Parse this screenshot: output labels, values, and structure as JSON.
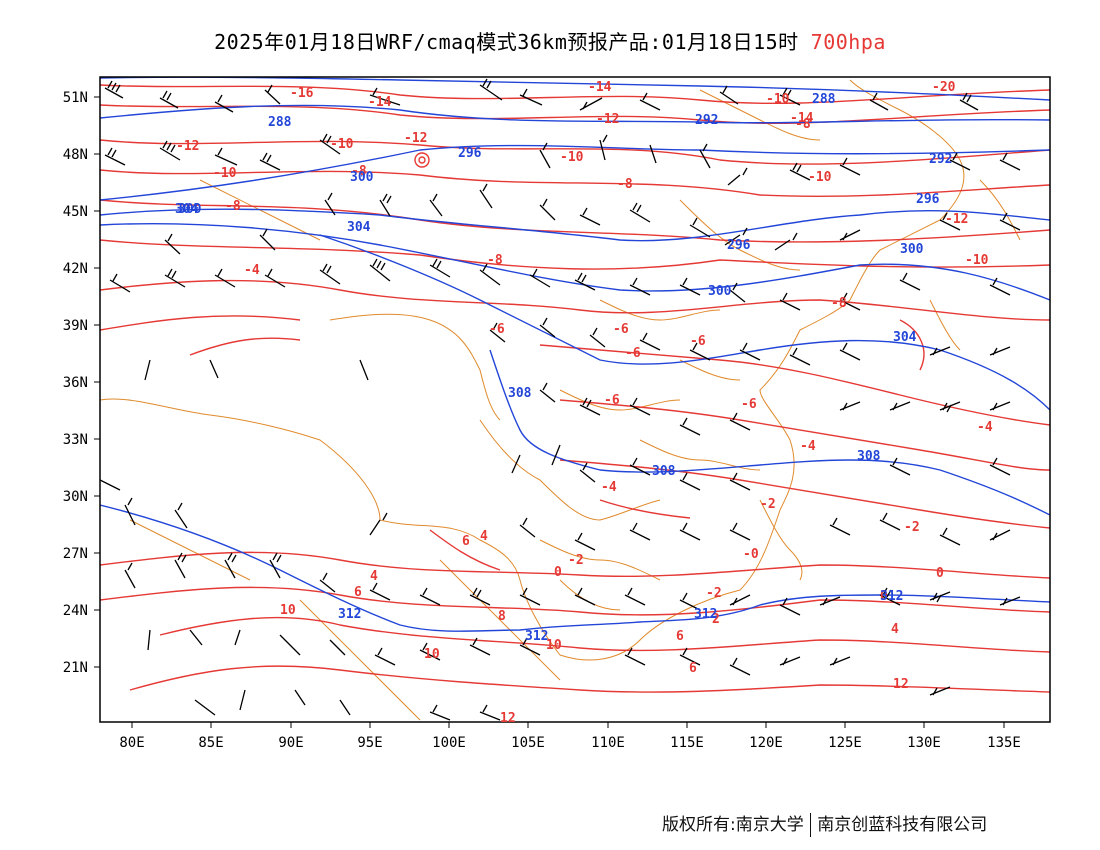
{
  "title": {
    "text": "2025年01月18日WRF/cmaq模式36km预报产品:01月18日15时",
    "level": "700hpa"
  },
  "axes": {
    "lat_labels": [
      "51N",
      "48N",
      "45N",
      "42N",
      "39N",
      "36N",
      "33N",
      "30N",
      "27N",
      "24N",
      "21N"
    ],
    "lon_labels": [
      "80E",
      "85E",
      "90E",
      "95E",
      "100E",
      "105E",
      "110E",
      "115E",
      "120E",
      "125E",
      "130E",
      "135E"
    ]
  },
  "colors": {
    "temperature_contour": "#e53935",
    "height_contour": "#2346d8",
    "boundary": "#e08a2c",
    "wind_barb": "#000000",
    "title_level": "#e53935"
  },
  "contour_labels": {
    "temperature": [
      "-16",
      "-14",
      "-14",
      "-20",
      "-10",
      "-14",
      "-12",
      "-12",
      "-10",
      "-12",
      "-10",
      "-8",
      "-10",
      "-8",
      "-8",
      "-10",
      "-8",
      "-12",
      "-4",
      "-10",
      "-8",
      "-8",
      "-6",
      "-6",
      "-6",
      "-6",
      "-6",
      "-6",
      "-4",
      "-4",
      "-2",
      "-2",
      "-2",
      "-4",
      "0",
      "0",
      "-2",
      "-0",
      "0",
      "6",
      "4",
      "6",
      "8",
      "2",
      "4",
      "12",
      "10",
      "10",
      "4",
      "6",
      "6",
      "10",
      "12"
    ],
    "height": [
      "288",
      "288",
      "292",
      "296",
      "292",
      "300",
      "296",
      "296",
      "300",
      "300",
      "300",
      "304",
      "304",
      "304",
      "308",
      "308",
      "308",
      "312",
      "312",
      "312",
      "312"
    ]
  },
  "footer": {
    "copyright": "版权所有:南京大学",
    "company": "南京创蓝科技有限公司"
  }
}
